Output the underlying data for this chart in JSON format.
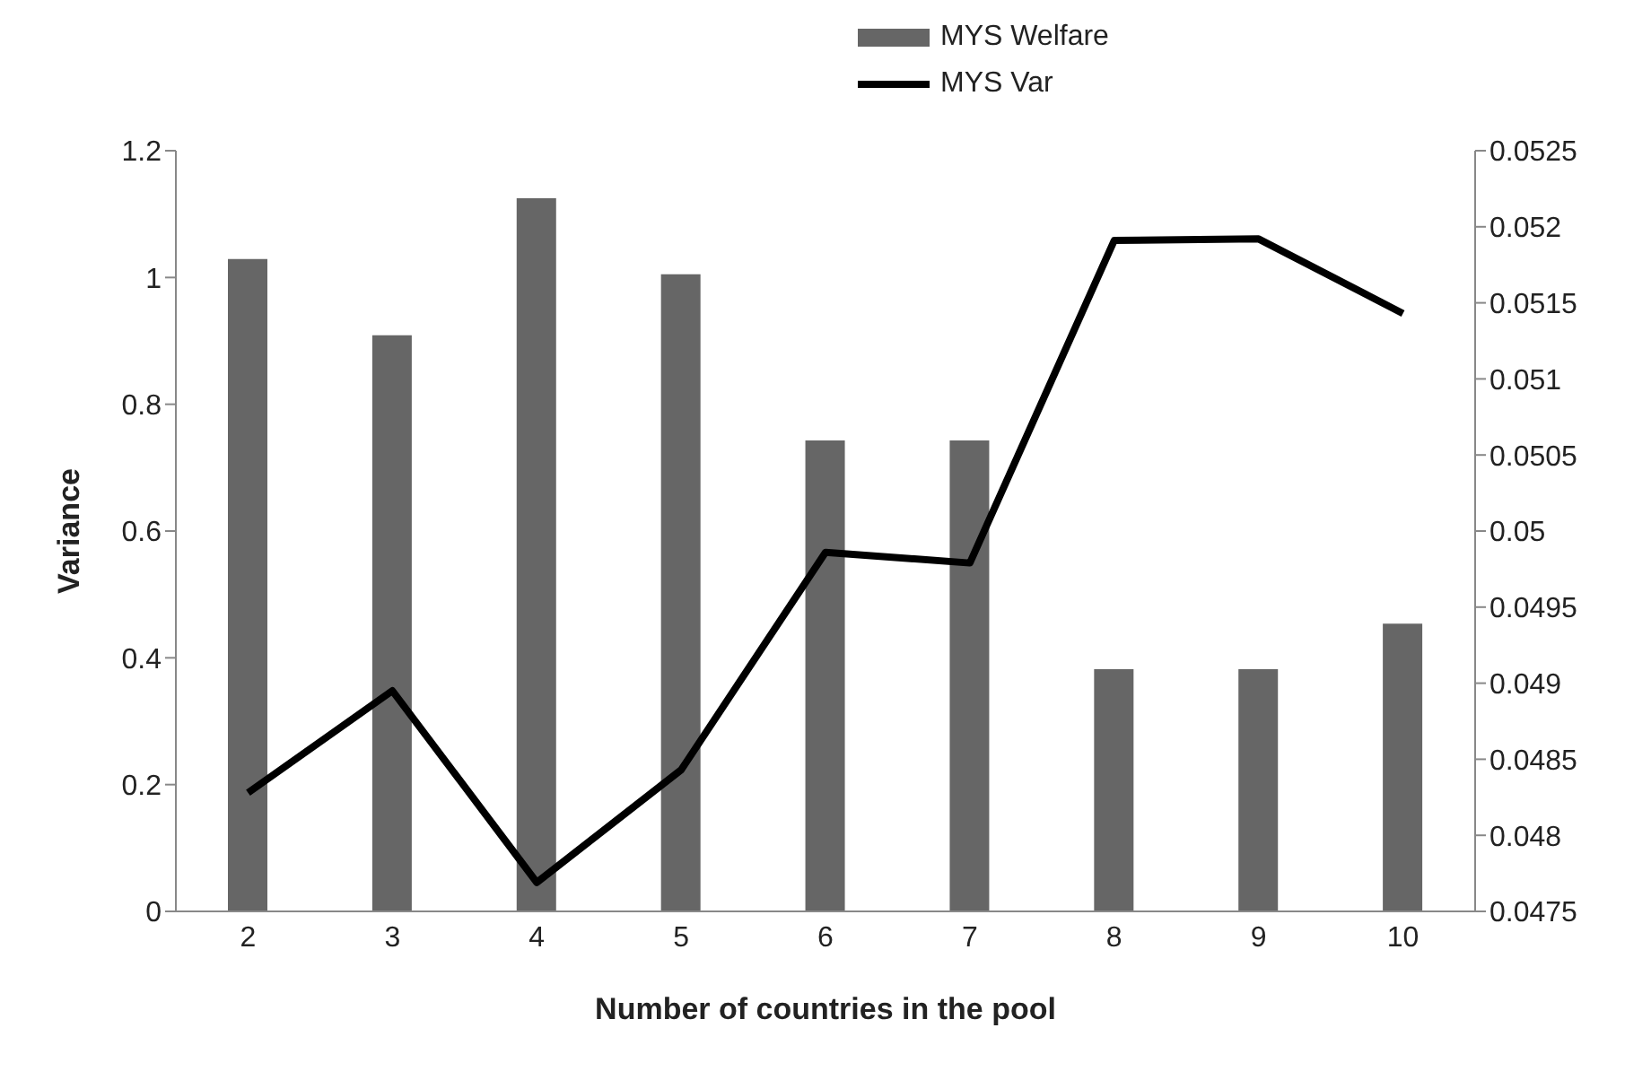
{
  "chart_data": {
    "type": "bar",
    "xlabel": "Number of countries in the pool",
    "ylabel": "Variance",
    "categories": [
      "2",
      "3",
      "4",
      "5",
      "6",
      "7",
      "8",
      "9",
      "10"
    ],
    "series": [
      {
        "name": "MYS Welfare",
        "color": "#666666",
        "values": [
          1.029,
          0.909,
          1.125,
          1.005,
          0.743,
          0.743,
          0.382,
          0.382,
          0.454
        ]
      },
      {
        "name": "MYS Var",
        "type": "line",
        "axis": "y2",
        "color": "#000000",
        "values": [
          0.04828,
          0.04895,
          0.04769,
          0.04843,
          0.04986,
          0.04979,
          0.05191,
          0.05192,
          0.05143
        ]
      }
    ],
    "ylim": [
      0,
      1.2
    ],
    "yticks": [
      0,
      0.2,
      0.4,
      0.6,
      0.8,
      1,
      1.2
    ],
    "y2lim": [
      0.0475,
      0.0525
    ],
    "y2ticks": [
      0.0475,
      0.048,
      0.0485,
      0.049,
      0.0495,
      0.05,
      0.0505,
      0.051,
      0.0515,
      0.052,
      0.0525
    ],
    "legend": "top",
    "marker": "none",
    "grid": false
  }
}
